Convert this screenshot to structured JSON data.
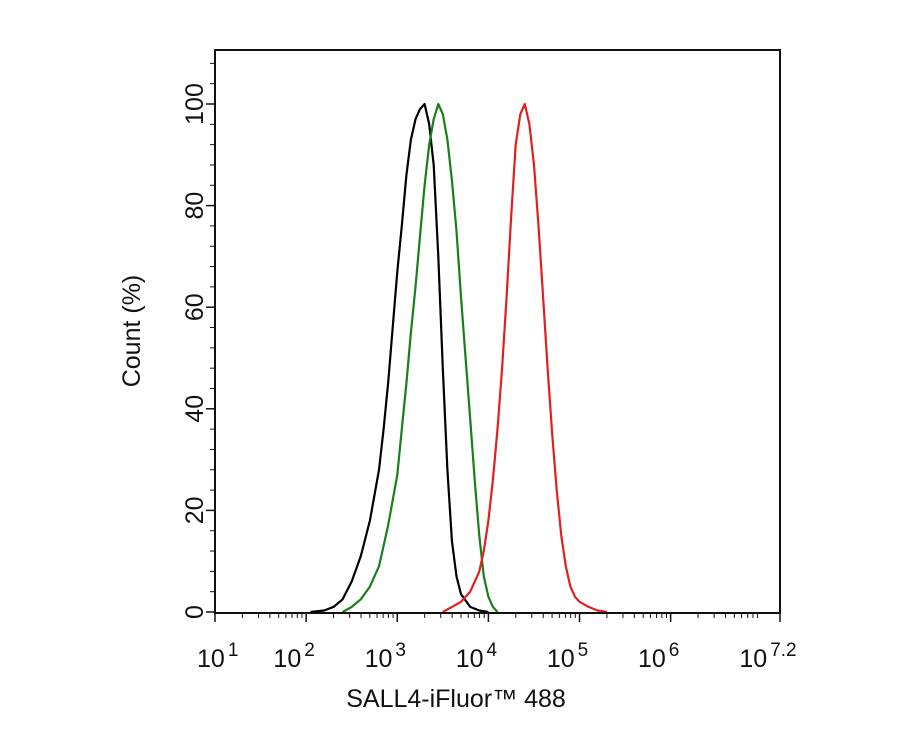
{
  "chart_data": {
    "type": "line",
    "title": "",
    "xlabel": "SALL4-iFluor™ 488",
    "ylabel": "Count  (%)",
    "xscale": "log",
    "xlim": [
      10,
      15848931.9
    ],
    "ylim": [
      0,
      100
    ],
    "y_display_max": 110,
    "x_ticks": [
      {
        "base": "10",
        "exp": "1",
        "value": 10
      },
      {
        "base": "10",
        "exp": "2",
        "value": 100
      },
      {
        "base": "10",
        "exp": "3",
        "value": 1000
      },
      {
        "base": "10",
        "exp": "4",
        "value": 10000
      },
      {
        "base": "10",
        "exp": "5",
        "value": 100000
      },
      {
        "base": "10",
        "exp": "6",
        "value": 1000000
      },
      {
        "base": "10",
        "exp": "7.2",
        "value": 15848931.9
      }
    ],
    "y_ticks": [
      "0",
      "20",
      "40",
      "60",
      "80",
      "100"
    ],
    "grid": false,
    "legend": "none",
    "series": [
      {
        "color": "#000000",
        "x": [
          112,
          158,
          200,
          251,
          316,
          398,
          501,
          631,
          708,
          794,
          891,
          1000,
          1122,
          1259,
          1413,
          1585,
          1778,
          1995,
          2239,
          2512,
          2818,
          3162,
          3548,
          3981,
          4467,
          5012,
          6310,
          7943,
          10000
        ],
        "y": [
          0,
          0.3,
          1,
          2.5,
          6,
          11,
          18,
          28,
          36,
          45,
          56,
          67,
          76,
          86,
          93,
          97,
          99,
          100,
          96,
          88,
          70,
          48,
          28,
          14,
          7,
          3.5,
          1,
          0.3,
          0
        ]
      },
      {
        "color": "#1a7f1a",
        "x": [
          251,
          316,
          398,
          501,
          631,
          794,
          1000,
          1122,
          1259,
          1413,
          1585,
          1778,
          1995,
          2239,
          2512,
          2818,
          3162,
          3548,
          3981,
          4467,
          5012,
          5623,
          6310,
          7079,
          7943,
          8913,
          10000,
          11220,
          12589
        ],
        "y": [
          0,
          1,
          2.5,
          5,
          9,
          17,
          27,
          36,
          45,
          55,
          64,
          74,
          84,
          92,
          97,
          100,
          98,
          93,
          85,
          75,
          62,
          50,
          38,
          26,
          15,
          7,
          3,
          1,
          0
        ]
      },
      {
        "color": "#e02020",
        "x": [
          3162,
          3981,
          5012,
          6310,
          7943,
          8913,
          10000,
          11220,
          12589,
          14125,
          15849,
          17783,
          19953,
          22387,
          25119,
          28184,
          31623,
          35481,
          39811,
          44668,
          50119,
          56234,
          63096,
          70795,
          79433,
          89125,
          100000,
          125893,
          158489,
          199526
        ],
        "y": [
          0,
          1,
          2,
          4,
          8,
          12,
          18,
          26,
          36,
          48,
          62,
          78,
          92,
          98,
          100,
          96,
          88,
          76,
          62,
          48,
          35,
          24,
          15,
          9,
          5,
          3,
          2,
          1,
          0.3,
          0
        ]
      }
    ]
  }
}
